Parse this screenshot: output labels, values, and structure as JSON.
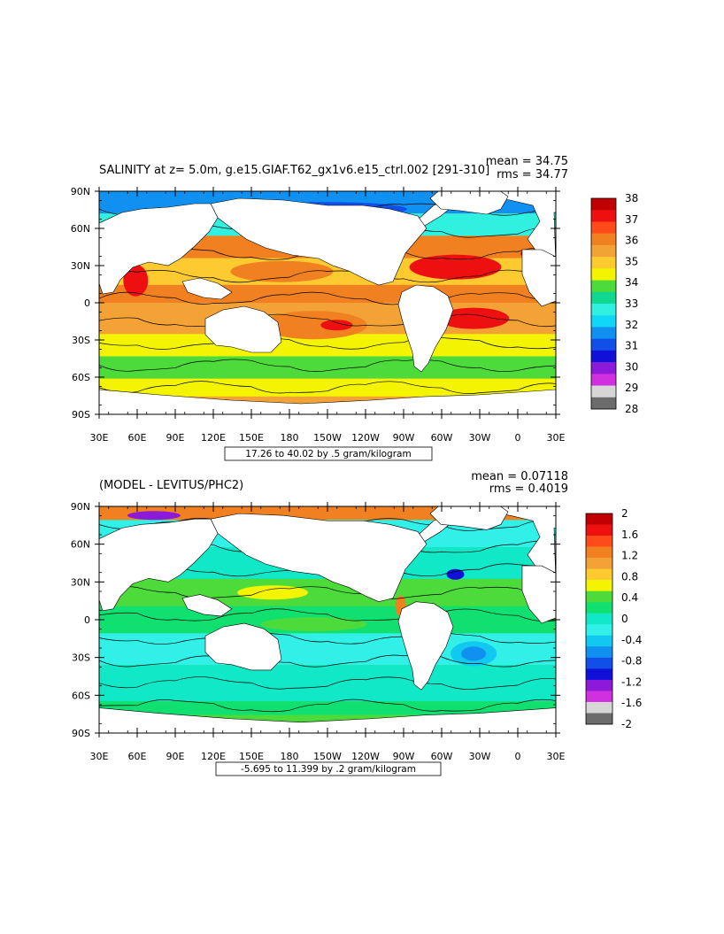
{
  "panels": [
    {
      "title": "SALINITY at z=    5.0m, g.e15.GIAF.T62_gx1v6.e15_ctrl.002 [291-310]",
      "mean": "mean = 34.75",
      "rms": "rms = 34.77",
      "range_label": "17.26 to 40.02 by .5 gram/kilogram",
      "colorbar_labels": [
        "38",
        "37",
        "36",
        "35",
        "34",
        "33",
        "32",
        "31",
        "30",
        "29",
        "28"
      ],
      "colorbar_colors": [
        "#c00000",
        "#ee1010",
        "#ff4a1a",
        "#f08020",
        "#f3a335",
        "#fdcb30",
        "#f4f400",
        "#4cdb3a",
        "#10d890",
        "#30f0e0",
        "#10d6f8",
        "#1090f0",
        "#1050e8",
        "#1010d8",
        "#8c1ad8",
        "#d030e0",
        "#d6d6d6",
        "#6c6c6c"
      ],
      "mask_color": "#ffffff"
    },
    {
      "title": "(MODEL - LEVITUS/PHC2)",
      "mean": "mean = 0.07118",
      "rms": "rms = 0.4019",
      "range_label": "-5.695 to 11.399 by .2 gram/kilogram",
      "colorbar_labels": [
        "2",
        "1.6",
        "1.2",
        "0.8",
        "0.4",
        "0",
        "-0.4",
        "-0.8",
        "-1.2",
        "-1.6",
        "-2"
      ],
      "colorbar_colors": [
        "#c00000",
        "#ee1010",
        "#ff4a1a",
        "#f08020",
        "#f3a335",
        "#fdcb30",
        "#f4f400",
        "#4cdb3a",
        "#10e070",
        "#10e8c8",
        "#30f0e8",
        "#10c8f0",
        "#1090f0",
        "#1050e8",
        "#1010d8",
        "#8c1ad8",
        "#d030e0",
        "#d6d6d6",
        "#6c6c6c"
      ],
      "mask_color": "#ffffff"
    }
  ],
  "axes": {
    "lat_ticks": [
      "90N",
      "60N",
      "30N",
      "0",
      "30S",
      "60S",
      "90S"
    ],
    "lon_ticks": [
      "30E",
      "60E",
      "90E",
      "120E",
      "150E",
      "180",
      "150W",
      "120W",
      "90W",
      "60W",
      "30W",
      "0",
      "30E"
    ]
  },
  "chart_data": [
    {
      "type": "heatmap",
      "title": "SALINITY at z=    5.0m, g.e15.GIAF.T62_gx1v6.e15_ctrl.002 [291-310]",
      "units": "gram/kilogram",
      "mean": 34.75,
      "rms": 34.77,
      "data_min": 17.26,
      "data_max": 40.02,
      "contour_interval": 0.5,
      "color_levels": [
        28,
        29,
        30,
        31,
        32,
        33,
        34,
        35,
        36,
        37,
        38
      ],
      "lon_range": [
        "30E",
        "30E"
      ],
      "lat_range": [
        "90S",
        "90N"
      ]
    },
    {
      "type": "heatmap",
      "title": "(MODEL - LEVITUS/PHC2)",
      "units": "gram/kilogram",
      "mean": 0.07118,
      "rms": 0.4019,
      "data_min": -5.695,
      "data_max": 11.399,
      "contour_interval": 0.2,
      "color_levels": [
        -2,
        -1.6,
        -1.2,
        -0.8,
        -0.4,
        0,
        0.4,
        0.8,
        1.2,
        1.6,
        2
      ],
      "lon_range": [
        "30E",
        "30E"
      ],
      "lat_range": [
        "90S",
        "90N"
      ]
    }
  ]
}
